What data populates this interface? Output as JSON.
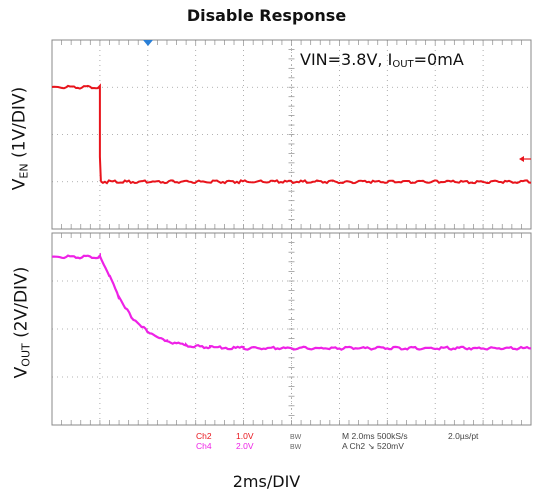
{
  "chart_data": [
    {
      "type": "line",
      "title": "Disable Response",
      "annotation_prefix": "VIN=3.8V, I",
      "annotation_sub": "OUT",
      "annotation_suffix": "=0mA",
      "ylabel_main": "V",
      "ylabel_sub": "EN",
      "ylabel_unit": " (1V/DIV)",
      "xlabel": "2ms/DIV",
      "xlim": [
        0,
        10
      ],
      "ylim": [
        0,
        4
      ],
      "color": "#e8141c",
      "x": [
        0,
        1.0,
        1.0,
        1.02,
        10
      ],
      "y": [
        3.0,
        3.0,
        1.5,
        1.0,
        1.0
      ]
    },
    {
      "type": "line",
      "ylabel_main": "V",
      "ylabel_sub": "OUT",
      "ylabel_unit": " (2V/DIV)",
      "xlim": [
        0,
        10
      ],
      "ylim": [
        0,
        4
      ],
      "color": "#ee22e6",
      "x": [
        0,
        1.0,
        1.2,
        1.4,
        1.7,
        2.0,
        2.4,
        2.8,
        3.3,
        4.0,
        10
      ],
      "y": [
        3.5,
        3.5,
        3.1,
        2.65,
        2.2,
        1.95,
        1.75,
        1.65,
        1.62,
        1.6,
        1.6
      ]
    }
  ],
  "scope_readout": {
    "ch2": "Ch2",
    "ch2_scale": "1.0V",
    "ch2_bw": "BW",
    "ch4": "Ch4",
    "ch4_scale": "2.0V",
    "ch4_bw": "BW",
    "timebase": "M 2.0ms 500kS/s",
    "pt": "2.0µs/pt",
    "trigger": "A  Ch2  ↘  520mV"
  },
  "colors": {
    "ch2": "#e8141c",
    "ch4": "#ee22e6",
    "grid": "#9a9a9a",
    "trigger_marker": "#2a7fd6"
  }
}
